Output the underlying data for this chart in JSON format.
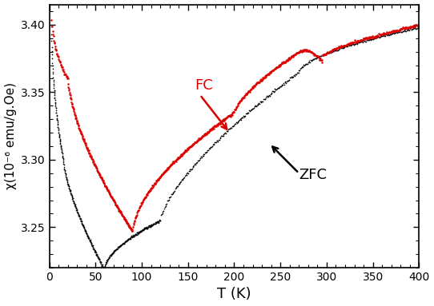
{
  "xlim": [
    0,
    400
  ],
  "ylim": [
    3.22,
    3.415
  ],
  "xlabel": "T (K)",
  "ylabel": "χ(10⁻⁶ emu/g.Oe)",
  "xticks": [
    0,
    50,
    100,
    150,
    200,
    250,
    300,
    350,
    400
  ],
  "yticks": [
    3.25,
    3.3,
    3.35,
    3.4
  ],
  "fc_color": "#dd0000",
  "zfc_color": "#000000",
  "background_color": "#ffffff",
  "figsize": [
    5.42,
    3.83
  ],
  "dpi": 100
}
